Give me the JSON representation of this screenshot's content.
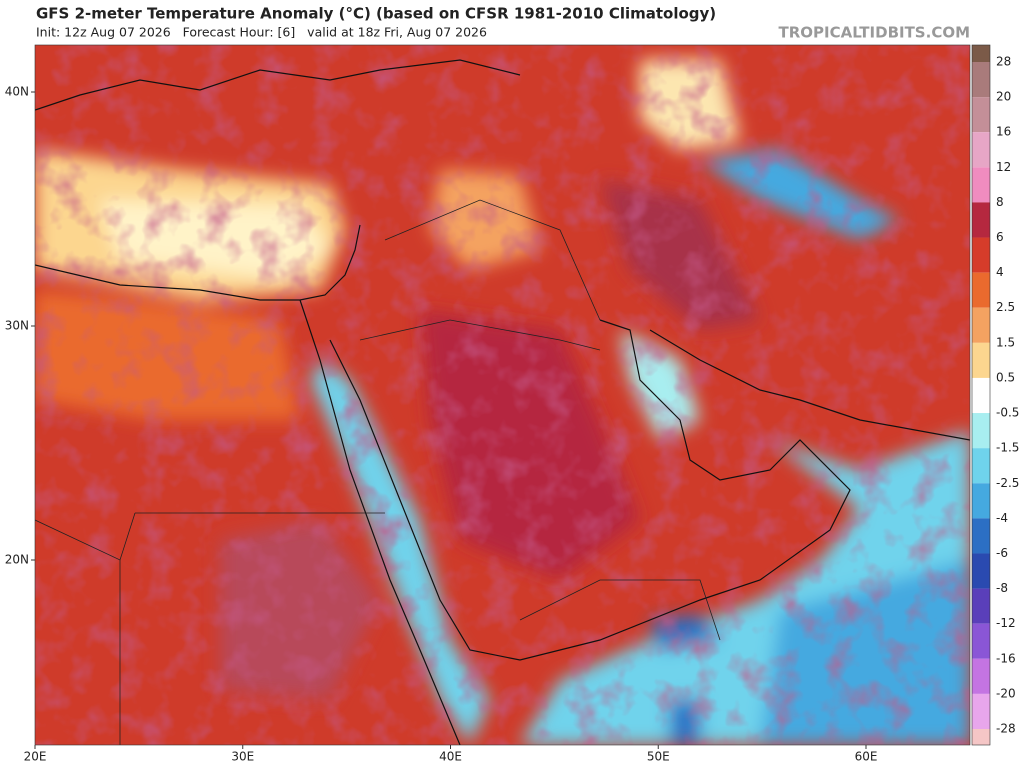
{
  "header": {
    "title": "GFS 2-meter Temperature Anomaly (°C) (based on CFSR 1981-2010 Climatology)",
    "subtitle": "Init: 12z Aug 07 2026   Forecast Hour: [6]   valid at 18z Fri, Aug 07 2026",
    "site": "TROPICALTIDBITS.COM"
  },
  "map": {
    "lat_labels": [
      "40N",
      "30N",
      "20N"
    ],
    "lon_labels": [
      "20E",
      "30E",
      "40E",
      "50E",
      "60E"
    ]
  },
  "colorbar": {
    "labels": [
      "28",
      "20",
      "16",
      "12",
      "8",
      "6",
      "4",
      "2.5",
      "1.5",
      "0.5",
      "-0.5",
      "-1.5",
      "-2.5",
      "-4",
      "-6",
      "-8",
      "-12",
      "-16",
      "-20",
      "-28"
    ],
    "colors": [
      "#7b5a48",
      "#a97b7b",
      "#c48f98",
      "#e7a6c6",
      "#f08cbf",
      "#b5283f",
      "#d63c2a",
      "#ea6a2e",
      "#f4a261",
      "#fcd68f",
      "#ffffff",
      "#a8eef0",
      "#6fd3ec",
      "#45a9e0",
      "#2c6fc4",
      "#2a4ab0",
      "#5a3fba",
      "#8a56d6",
      "#c474e2",
      "#e8a6ec",
      "#f5c6c6"
    ]
  }
}
